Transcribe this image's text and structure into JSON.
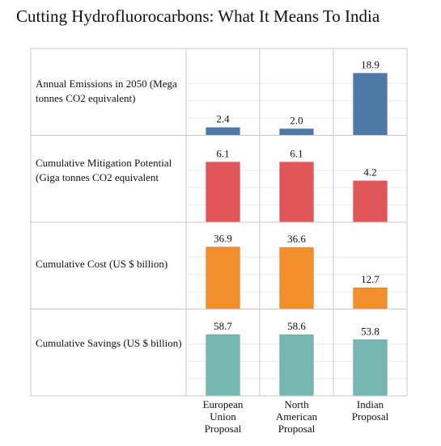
{
  "title": "Cutting Hydrofluorocarbons: What It Means To India",
  "chart_data": {
    "type": "bar",
    "layout": "small-multiples",
    "categories": [
      "European Union Proposal",
      "North American Proposal",
      "Indian Proposal"
    ],
    "category_labels": [
      [
        "European",
        "Union",
        "Proposal"
      ],
      [
        "North",
        "American",
        "Proposal"
      ],
      [
        "Indian",
        "Proposal"
      ]
    ],
    "panels": [
      {
        "label": "Annual Emissions in 2050 (Mega tonnes CO2 equivalent)",
        "values": [
          2.4,
          2.0,
          18.9
        ],
        "value_labels": [
          "2.4",
          "2.0",
          "18.9"
        ],
        "color": "#4e79a7",
        "ylim": [
          0,
          21
        ]
      },
      {
        "label": "Cumulative Mitigation Potential (Giga tonnes CO2 equivalent",
        "values": [
          6.1,
          6.1,
          4.2
        ],
        "value_labels": [
          "6.1",
          "6.1",
          "4.2"
        ],
        "color": "#e15759",
        "ylim": [
          0,
          7
        ]
      },
      {
        "label": "Cumulative Cost (US $ billion)",
        "values": [
          36.9,
          36.6,
          12.7
        ],
        "value_labels": [
          "36.9",
          "36.6",
          "12.7"
        ],
        "color": "#f28e2b",
        "ylim": [
          0,
          41
        ]
      },
      {
        "label": "Cumulative Savings (US $ billion)",
        "values": [
          58.7,
          58.6,
          53.8
        ],
        "value_labels": [
          "58.7",
          "58.6",
          "53.8"
        ],
        "color": "#76b7b2",
        "ylim": [
          0,
          66
        ]
      }
    ],
    "grid": true,
    "legend": "none"
  }
}
